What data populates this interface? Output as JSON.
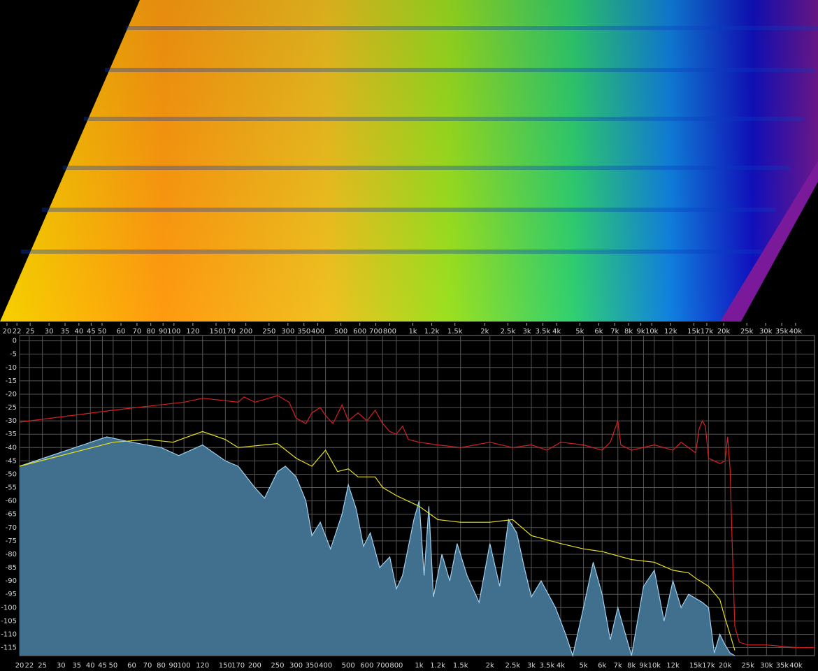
{
  "chart_data": {
    "type": "line",
    "xscale": "log",
    "grid": true,
    "xlim": [
      20,
      48000
    ],
    "ylim": [
      -118,
      2
    ],
    "xticks": [
      20,
      22,
      25,
      30,
      35,
      40,
      45,
      50,
      60,
      70,
      80,
      90,
      100,
      120,
      150,
      170,
      200,
      250,
      300,
      350,
      400,
      500,
      600,
      700,
      800,
      {
        "value": 1000,
        "label": "1k"
      },
      {
        "value": 1200,
        "label": "1.2k"
      },
      {
        "value": 1500,
        "label": "1.5k"
      },
      {
        "value": 2000,
        "label": "2k"
      },
      {
        "value": 2500,
        "label": "2.5k"
      },
      {
        "value": 3000,
        "label": "3k"
      },
      {
        "value": 3500,
        "label": "3.5k"
      },
      {
        "value": 4000,
        "label": "4k"
      },
      {
        "value": 5000,
        "label": "5k"
      },
      {
        "value": 6000,
        "label": "6k"
      },
      {
        "value": 7000,
        "label": "7k"
      },
      {
        "value": 8000,
        "label": "8k"
      },
      {
        "value": 9000,
        "label": "9k"
      },
      {
        "value": 10000,
        "label": "10k"
      },
      {
        "value": 12000,
        "label": "12k"
      },
      {
        "value": 15000,
        "label": "15k"
      },
      {
        "value": 17000,
        "label": "17k"
      },
      {
        "value": 20000,
        "label": "20k"
      },
      {
        "value": 25000,
        "label": "25k"
      },
      {
        "value": 30000,
        "label": "30k"
      },
      {
        "value": 35000,
        "label": "35k"
      },
      {
        "value": 40000,
        "label": "40k"
      }
    ],
    "yticks": [
      0,
      -5,
      -10,
      -15,
      -20,
      -25,
      -30,
      -35,
      -40,
      -45,
      -50,
      -55,
      -60,
      -65,
      -70,
      -75,
      -80,
      -85,
      -90,
      -95,
      -100,
      -105,
      -110,
      -115
    ],
    "series": [
      {
        "color": "#9fd0f0",
        "fill": "#40708e",
        "area": true,
        "x": [
          20,
          47,
          60,
          80,
          95,
          120,
          150,
          170,
          200,
          220,
          250,
          270,
          300,
          330,
          350,
          380,
          420,
          470,
          500,
          540,
          580,
          620,
          680,
          750,
          800,
          850,
          950,
          1000,
          1050,
          1100,
          1150,
          1250,
          1350,
          1450,
          1600,
          1800,
          2000,
          2200,
          2400,
          2600,
          2800,
          3000,
          3300,
          3800,
          4200,
          4500,
          5000,
          5500,
          6000,
          6500,
          7000,
          8000,
          9000,
          10000,
          11000,
          12000,
          13000,
          14000,
          16000,
          17000,
          18000,
          19000,
          20000,
          21000,
          22000
        ],
        "values": [
          -47,
          -36,
          -38,
          -40,
          -43,
          -39,
          -45,
          -47,
          -55,
          -59,
          -49,
          -47,
          -51,
          -60,
          -73,
          -68,
          -78,
          -65,
          -54,
          -63,
          -77,
          -72,
          -85,
          -81,
          -93,
          -88,
          -67,
          -60,
          -88,
          -62,
          -96,
          -80,
          -90,
          -76,
          -88,
          -98,
          -76,
          -92,
          -67,
          -72,
          -85,
          -96,
          -90,
          -100,
          -110,
          -118,
          -100,
          -83,
          -95,
          -112,
          -100,
          -118,
          -92,
          -86,
          -105,
          -90,
          -100,
          -95,
          -98,
          -100,
          -117,
          -110,
          -114,
          -117,
          -118
        ]
      },
      {
        "color": "#e8e020",
        "area": false,
        "x": [
          20,
          50,
          70,
          90,
          100,
          120,
          150,
          170,
          250,
          300,
          350,
          400,
          450,
          500,
          550,
          650,
          700,
          800,
          1000,
          1200,
          1500,
          2000,
          2500,
          3000,
          4000,
          5000,
          6000,
          8000,
          10000,
          12000,
          14000,
          15000,
          17000,
          19000,
          20000,
          21000,
          22000
        ],
        "values": [
          -47,
          -38,
          -37,
          -38,
          -36.5,
          -34,
          -37,
          -40,
          -38.5,
          -44,
          -47,
          -41,
          -49,
          -48,
          -51,
          -51,
          -55,
          -58,
          -62,
          -67,
          -68,
          -68,
          -67,
          -73,
          -76,
          -78,
          -79,
          -82,
          -83,
          -86,
          -87,
          -89,
          -92,
          -97,
          -104,
          -110,
          -116
        ]
      },
      {
        "color": "#d82020",
        "area": false,
        "x": [
          20,
          50,
          100,
          120,
          170,
          180,
          200,
          220,
          250,
          280,
          300,
          330,
          350,
          380,
          400,
          430,
          470,
          500,
          550,
          600,
          650,
          700,
          750,
          800,
          850,
          900,
          1000,
          1200,
          1500,
          2000,
          2500,
          3000,
          3500,
          4000,
          5000,
          6000,
          6500,
          7000,
          7200,
          8000,
          10000,
          12000,
          13000,
          15000,
          15500,
          16000,
          16500,
          17000,
          18000,
          19000,
          20000,
          20500,
          21000,
          21500,
          22000,
          23000,
          25000,
          30000,
          40000,
          48000
        ],
        "values": [
          -30.5,
          -26,
          -23,
          -21.5,
          -23,
          -21,
          -23,
          -22,
          -20.5,
          -23,
          -29,
          -31,
          -27,
          -25,
          -28,
          -31,
          -24,
          -30,
          -27,
          -30,
          -26,
          -31,
          -34,
          -35,
          -32,
          -37,
          -38,
          -39,
          -40,
          -38,
          -40,
          -39,
          -41,
          -38,
          -39,
          -41,
          -38,
          -30,
          -39,
          -41,
          -39,
          -41,
          -38,
          -42,
          -33,
          -30,
          -32,
          -44,
          -45,
          -46,
          -45,
          -36,
          -48,
          -80,
          -107,
          -113,
          -114,
          -114,
          -115,
          -115
        ]
      }
    ]
  }
}
